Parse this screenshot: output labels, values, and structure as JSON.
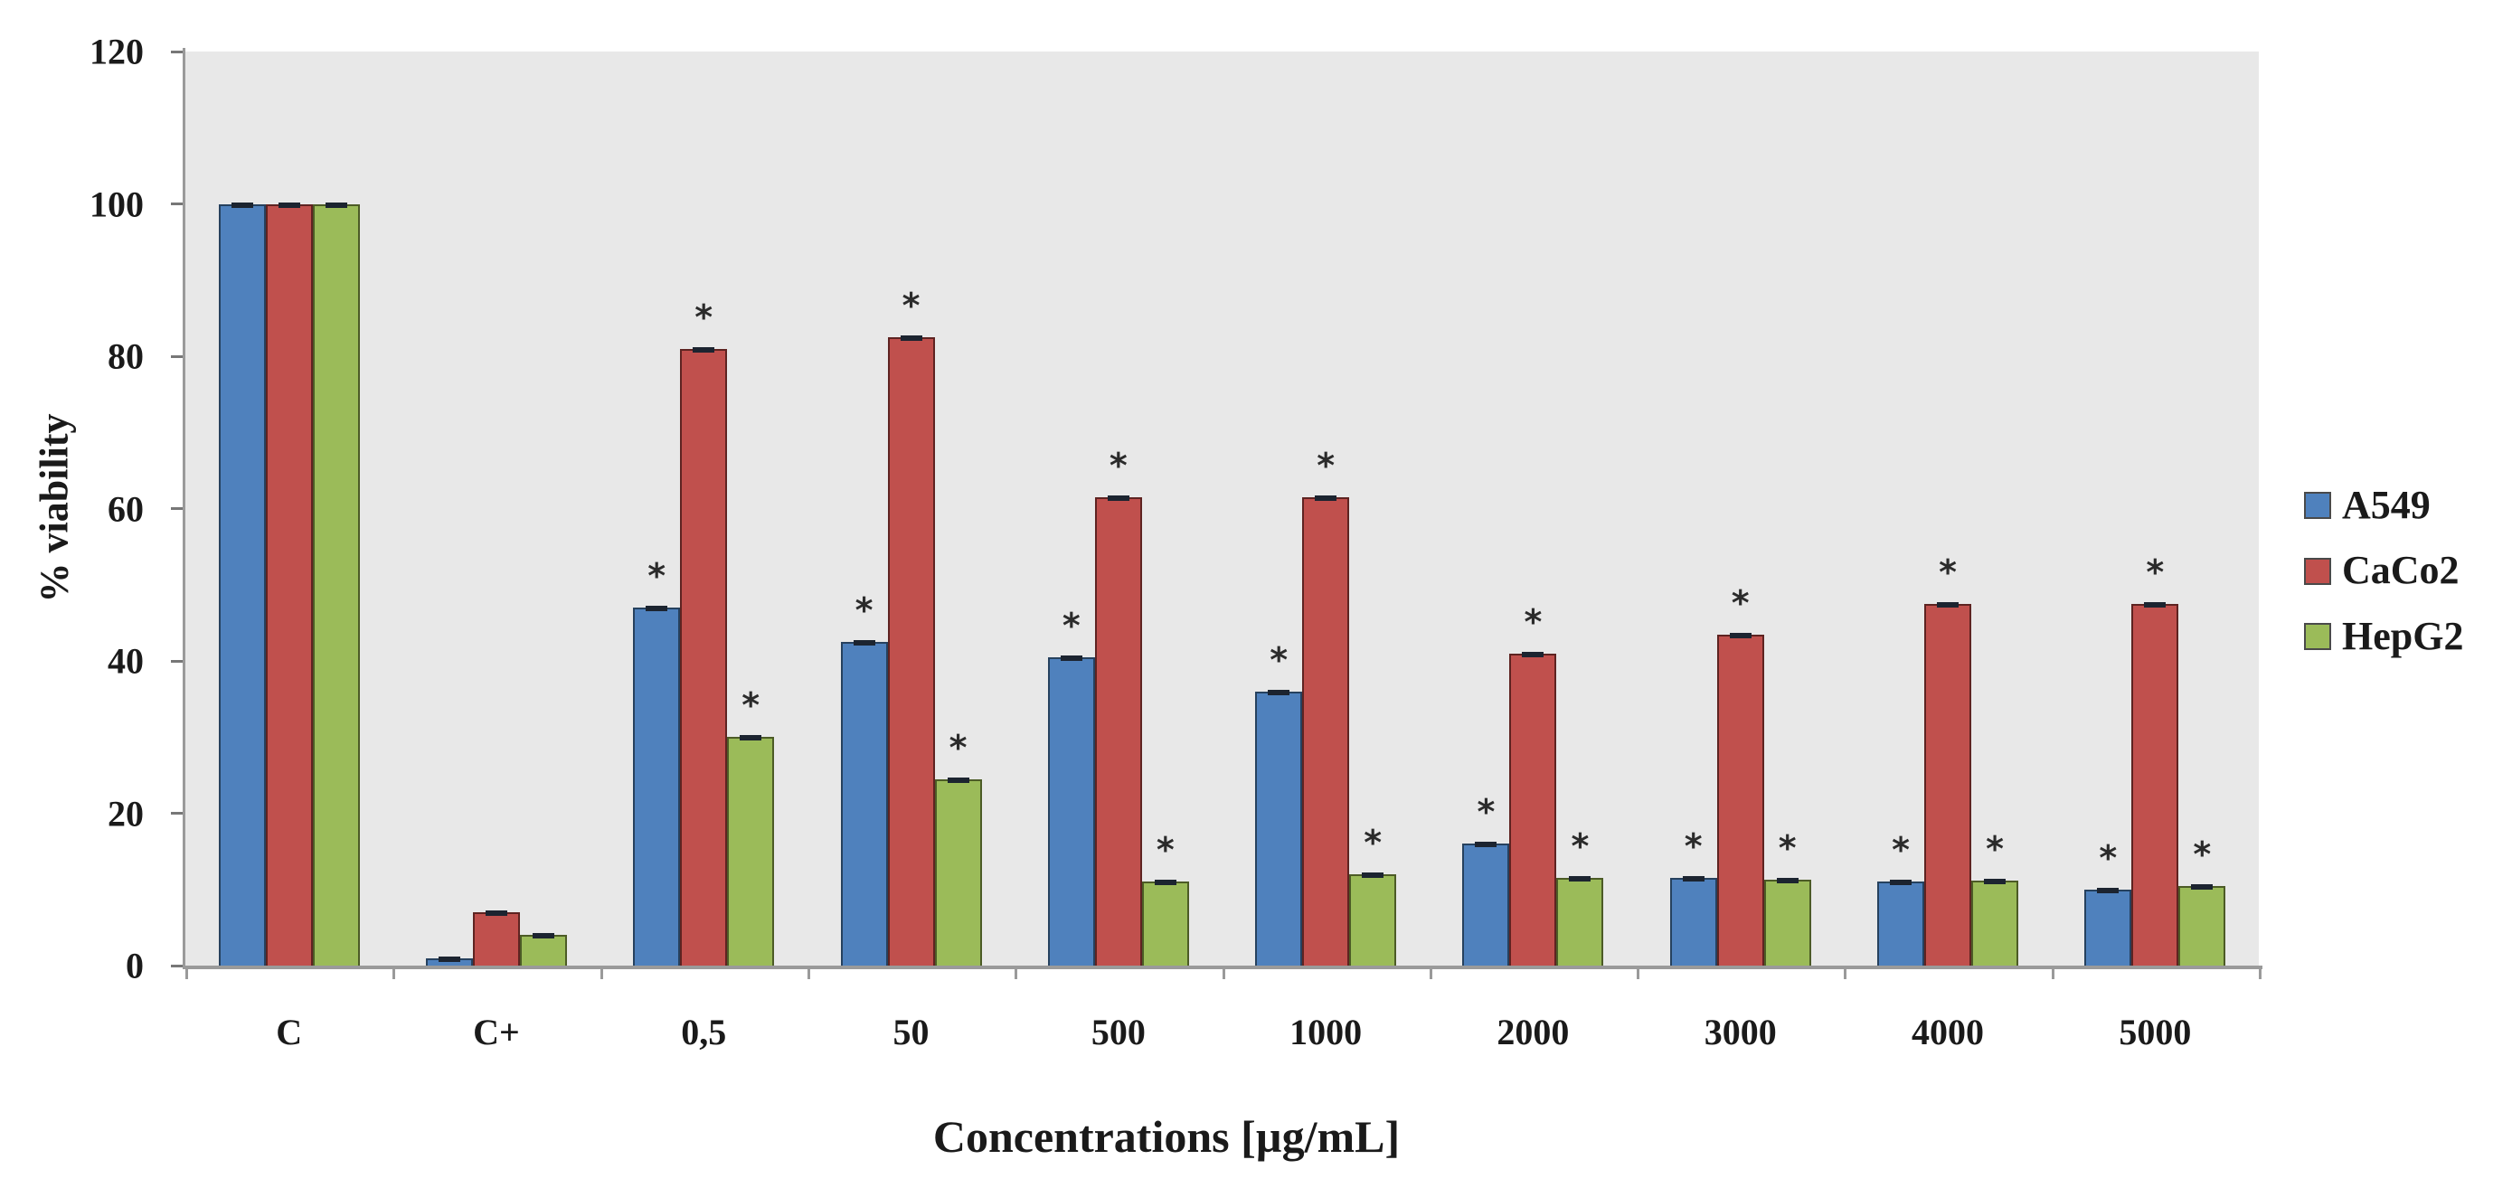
{
  "figure": {
    "background": "#ffffff",
    "plot_background": "#e8e8e8",
    "axis_color": "#9a9a9a",
    "error_cap_color": "#1c2430"
  },
  "chart_data": {
    "type": "bar",
    "title": "",
    "xlabel": "Concentrations [µg/mL]",
    "ylabel": "% viability",
    "ylim": [
      0,
      120
    ],
    "yticks": [
      0,
      20,
      40,
      60,
      80,
      100,
      120
    ],
    "grid": false,
    "legend_position": "right",
    "error_bars": true,
    "significance_symbol": "*",
    "categories": [
      "C",
      "C+",
      "0,5",
      "50",
      "500",
      "1000",
      "2000",
      "3000",
      "4000",
      "5000"
    ],
    "series": [
      {
        "name": "A549",
        "color": "#4f81bd",
        "border_color": "#26415e",
        "values": [
          100,
          1,
          47,
          42.5,
          40.5,
          36,
          16,
          11.5,
          11,
          10
        ],
        "significant": [
          false,
          false,
          true,
          true,
          true,
          true,
          true,
          true,
          true,
          true
        ]
      },
      {
        "name": "CaCo2",
        "color": "#c0504d",
        "border_color": "#5e2321",
        "values": [
          100,
          7,
          81,
          82.5,
          61.5,
          61.5,
          41,
          43.5,
          47.5,
          47.5
        ],
        "significant": [
          false,
          false,
          true,
          true,
          true,
          true,
          true,
          true,
          true,
          true
        ]
      },
      {
        "name": "HepG2",
        "color": "#9bbb59",
        "border_color": "#4c5b26",
        "values": [
          100,
          4,
          30,
          24.5,
          11,
          12,
          11.5,
          11.3,
          11.2,
          10.5
        ],
        "significant": [
          false,
          false,
          true,
          true,
          true,
          true,
          true,
          true,
          true,
          true
        ]
      }
    ]
  }
}
